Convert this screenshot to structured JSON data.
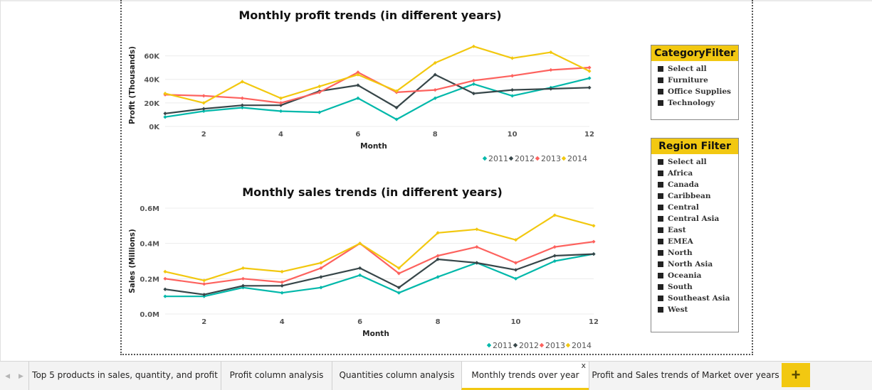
{
  "chart_data": [
    {
      "type": "line",
      "title": "Monthly profit trends (in different years)",
      "xlabel": "Month",
      "ylabel": "Profit (Thousands)",
      "x": [
        1,
        2,
        3,
        4,
        5,
        6,
        7,
        8,
        9,
        10,
        11,
        12
      ],
      "x_ticks": [
        2,
        4,
        6,
        8,
        10,
        12
      ],
      "y_ticks": [
        "0K",
        "20K",
        "40K",
        "60K"
      ],
      "y_tick_values": [
        0,
        20,
        40,
        60
      ],
      "ylim": [
        0,
        70
      ],
      "grid": true,
      "legend_position": "bottom-right",
      "series": [
        {
          "name": "2011",
          "color": "#01b8aa",
          "values": [
            8,
            13,
            16,
            13,
            12,
            24,
            6,
            24,
            36,
            26,
            33,
            41
          ]
        },
        {
          "name": "2012",
          "color": "#374649",
          "values": [
            11,
            15,
            18,
            18,
            30,
            35,
            16,
            44,
            28,
            31,
            32,
            33
          ]
        },
        {
          "name": "2013",
          "color": "#fd625e",
          "values": [
            27,
            26,
            24,
            20,
            29,
            46,
            29,
            31,
            39,
            43,
            48,
            50
          ]
        },
        {
          "name": "2014",
          "color": "#f2c80f",
          "values": [
            28,
            20,
            38,
            24,
            34,
            44,
            30,
            54,
            68,
            58,
            63,
            47
          ]
        }
      ]
    },
    {
      "type": "line",
      "title": "Monthly sales trends (in different years)",
      "xlabel": "Month",
      "ylabel": "Sales (Millions)",
      "x": [
        1,
        2,
        3,
        4,
        5,
        6,
        7,
        8,
        9,
        10,
        11,
        12
      ],
      "x_ticks": [
        2,
        4,
        6,
        8,
        10,
        12
      ],
      "y_ticks": [
        "0.0M",
        "0.2M",
        "0.4M",
        "0.6M"
      ],
      "y_tick_values": [
        0,
        0.2,
        0.4,
        0.6
      ],
      "ylim": [
        0,
        0.6
      ],
      "grid": true,
      "legend_position": "bottom-right",
      "series": [
        {
          "name": "2011",
          "color": "#01b8aa",
          "values": [
            0.1,
            0.1,
            0.15,
            0.12,
            0.15,
            0.22,
            0.12,
            0.21,
            0.29,
            0.2,
            0.3,
            0.34
          ]
        },
        {
          "name": "2012",
          "color": "#374649",
          "values": [
            0.14,
            0.11,
            0.16,
            0.16,
            0.21,
            0.26,
            0.15,
            0.31,
            0.29,
            0.25,
            0.33,
            0.34
          ]
        },
        {
          "name": "2013",
          "color": "#fd625e",
          "values": [
            0.2,
            0.17,
            0.2,
            0.18,
            0.26,
            0.4,
            0.23,
            0.33,
            0.38,
            0.29,
            0.38,
            0.41
          ]
        },
        {
          "name": "2014",
          "color": "#f2c80f",
          "values": [
            0.24,
            0.19,
            0.26,
            0.24,
            0.29,
            0.4,
            0.26,
            0.46,
            0.48,
            0.42,
            0.56,
            0.5
          ]
        }
      ]
    }
  ],
  "category_filter": {
    "title": "CategoryFilter",
    "items": [
      "Select all",
      "Furniture",
      "Office Supplies",
      "Technology"
    ]
  },
  "region_filter": {
    "title": "Region Filter",
    "items": [
      "Select all",
      "Africa",
      "Canada",
      "Caribbean",
      "Central",
      "Central Asia",
      "East",
      "EMEA",
      "North",
      "North Asia",
      "Oceania",
      "South",
      "Southeast Asia",
      "West"
    ]
  },
  "tabs": [
    {
      "label": "Top 5 products in sales, quantity, and profit",
      "active": false
    },
    {
      "label": "Profit column analysis",
      "active": false
    },
    {
      "label": "Quantities column analysis",
      "active": false
    },
    {
      "label": "Monthly trends over year",
      "active": true
    },
    {
      "label": "Profit and Sales trends of Market over years",
      "active": false
    }
  ],
  "tab_close_glyph": "x",
  "add_tab_glyph": "+",
  "nav": {
    "prev_glyph": "◀",
    "next_glyph": "▶"
  },
  "accent_color": "#f2c811"
}
